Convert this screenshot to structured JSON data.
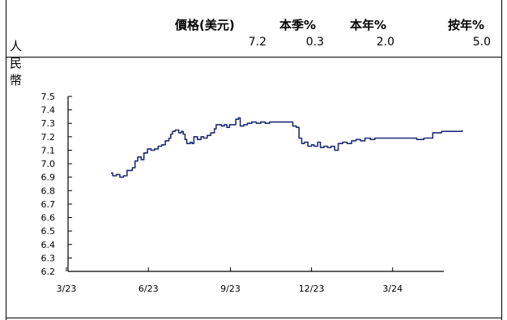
{
  "table": {
    "headers": [
      "價格(美元)",
      "本季%",
      "本年%",
      "按年%"
    ],
    "row": {
      "label": "人民幣",
      "values": [
        "7.2",
        "0.3",
        "2.0",
        "5.0"
      ]
    }
  },
  "chart_data": {
    "type": "line",
    "title": "",
    "xlabel": "",
    "ylabel": "",
    "x_ticks": [
      "3/23",
      "6/23",
      "9/23",
      "12/23",
      "3/24"
    ],
    "y_ticks": [
      "6.2",
      "6.3",
      "6.4",
      "6.5",
      "6.6",
      "6.7",
      "6.8",
      "6.9",
      "7.0",
      "7.1",
      "7.2",
      "7.3",
      "7.4",
      "7.5"
    ],
    "ylim": [
      6.2,
      7.5
    ],
    "grid": false,
    "line_color": "#1f2a78",
    "series": [
      {
        "values": [
          [
            "2023-04-20",
            6.93
          ],
          [
            "2023-04-22",
            6.91
          ],
          [
            "2023-04-26",
            6.92
          ],
          [
            "2023-04-30",
            6.9
          ],
          [
            "2023-05-04",
            6.91
          ],
          [
            "2023-05-08",
            6.95
          ],
          [
            "2023-05-12",
            6.95
          ],
          [
            "2023-05-14",
            6.97
          ],
          [
            "2023-05-17",
            7.02
          ],
          [
            "2023-05-20",
            7.05
          ],
          [
            "2023-05-24",
            7.03
          ],
          [
            "2023-05-27",
            7.08
          ],
          [
            "2023-05-31",
            7.11
          ],
          [
            "2023-06-04",
            7.1
          ],
          [
            "2023-06-08",
            7.11
          ],
          [
            "2023-06-12",
            7.13
          ],
          [
            "2023-06-16",
            7.14
          ],
          [
            "2023-06-20",
            7.17
          ],
          [
            "2023-06-24",
            7.19
          ],
          [
            "2023-06-26",
            7.22
          ],
          [
            "2023-06-28",
            7.24
          ],
          [
            "2023-07-01",
            7.25
          ],
          [
            "2023-07-05",
            7.23
          ],
          [
            "2023-07-08",
            7.24
          ],
          [
            "2023-07-10",
            7.22
          ],
          [
            "2023-07-12",
            7.18
          ],
          [
            "2023-07-14",
            7.15
          ],
          [
            "2023-07-18",
            7.16
          ],
          [
            "2023-07-20",
            7.15
          ],
          [
            "2023-07-22",
            7.2
          ],
          [
            "2023-07-26",
            7.18
          ],
          [
            "2023-07-30",
            7.2
          ],
          [
            "2023-08-02",
            7.19
          ],
          [
            "2023-08-06",
            7.21
          ],
          [
            "2023-08-10",
            7.23
          ],
          [
            "2023-08-14",
            7.26
          ],
          [
            "2023-08-16",
            7.29
          ],
          [
            "2023-08-19",
            7.29
          ],
          [
            "2023-08-22",
            7.28
          ],
          [
            "2023-08-25",
            7.29
          ],
          [
            "2023-08-28",
            7.27
          ],
          [
            "2023-08-31",
            7.29
          ],
          [
            "2023-09-04",
            7.29
          ],
          [
            "2023-09-07",
            7.33
          ],
          [
            "2023-09-10",
            7.34
          ],
          [
            "2023-09-12",
            7.28
          ],
          [
            "2023-09-16",
            7.29
          ],
          [
            "2023-09-20",
            7.3
          ],
          [
            "2023-09-25",
            7.31
          ],
          [
            "2023-09-30",
            7.3
          ],
          [
            "2023-10-05",
            7.31
          ],
          [
            "2023-10-10",
            7.3
          ],
          [
            "2023-10-15",
            7.31
          ],
          [
            "2023-10-25",
            7.31
          ],
          [
            "2023-11-05",
            7.31
          ],
          [
            "2023-11-10",
            7.28
          ],
          [
            "2023-11-14",
            7.27
          ],
          [
            "2023-11-17",
            7.19
          ],
          [
            "2023-11-20",
            7.15
          ],
          [
            "2023-11-23",
            7.16
          ],
          [
            "2023-11-27",
            7.13
          ],
          [
            "2023-12-01",
            7.14
          ],
          [
            "2023-12-04",
            7.13
          ],
          [
            "2023-12-08",
            7.16
          ],
          [
            "2023-12-11",
            7.12
          ],
          [
            "2023-12-15",
            7.13
          ],
          [
            "2023-12-19",
            7.12
          ],
          [
            "2023-12-23",
            7.13
          ],
          [
            "2023-12-27",
            7.1
          ],
          [
            "2023-12-31",
            7.15
          ],
          [
            "2024-01-05",
            7.16
          ],
          [
            "2024-01-10",
            7.15
          ],
          [
            "2024-01-15",
            7.17
          ],
          [
            "2024-01-20",
            7.18
          ],
          [
            "2024-01-25",
            7.17
          ],
          [
            "2024-01-30",
            7.19
          ],
          [
            "2024-02-05",
            7.18
          ],
          [
            "2024-02-10",
            7.19
          ],
          [
            "2024-02-20",
            7.19
          ],
          [
            "2024-03-01",
            7.19
          ],
          [
            "2024-03-10",
            7.19
          ],
          [
            "2024-03-20",
            7.19
          ],
          [
            "2024-03-28",
            7.18
          ],
          [
            "2024-04-05",
            7.19
          ],
          [
            "2024-04-10",
            7.19
          ],
          [
            "2024-04-15",
            7.23
          ],
          [
            "2024-04-20",
            7.23
          ],
          [
            "2024-04-25",
            7.24
          ],
          [
            "2024-05-01",
            7.24
          ],
          [
            "2024-05-10",
            7.24
          ],
          [
            "2024-05-16",
            7.24
          ],
          [
            "2024-05-18",
            7.25
          ]
        ]
      }
    ]
  }
}
